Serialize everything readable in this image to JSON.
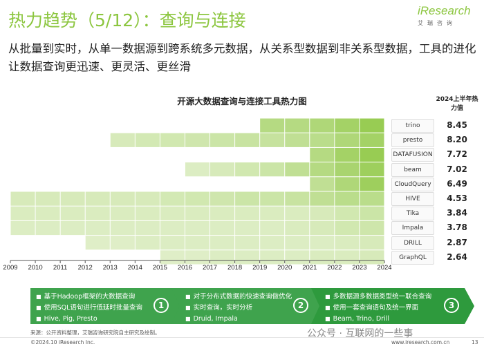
{
  "header": {
    "title": "热力趋势（5/12）：查询与连接",
    "subtitle": "从批量到实时，从单一数据源到跨系统多元数据，从关系型数据到非关系型数据，工具的进化让数据查询更迅速、更灵活、更丝滑",
    "logo_brand": "iResearch",
    "logo_sub": "艾瑞咨询"
  },
  "chart_data": {
    "type": "heatmap",
    "title": "开源大数据查询与连接工具热力图",
    "heat_header": "2024上半年热力值",
    "x": [
      "2009",
      "2010",
      "2011",
      "2012",
      "2013",
      "2014",
      "2015",
      "2016",
      "2017",
      "2018",
      "2019",
      "2020",
      "2021",
      "2022",
      "2023",
      "2024"
    ],
    "rows": [
      {
        "tool": "trino",
        "value": "8.45",
        "start": 2019,
        "intensity": [
          0,
          0,
          0,
          0,
          0,
          0,
          0,
          0,
          0,
          0,
          0.55,
          0.55,
          0.6,
          0.7,
          0.8,
          0.9
        ]
      },
      {
        "tool": "presto",
        "value": "8.20",
        "start": 2013,
        "intensity": [
          0,
          0,
          0,
          0,
          0.25,
          0.28,
          0.3,
          0.32,
          0.35,
          0.38,
          0.4,
          0.45,
          0.5,
          0.6,
          0.7,
          0.85
        ]
      },
      {
        "tool": "DATAFUSION",
        "value": "7.72",
        "start": 2021,
        "intensity": [
          0,
          0,
          0,
          0,
          0,
          0,
          0,
          0,
          0,
          0,
          0,
          0,
          0.55,
          0.7,
          0.8,
          0.85
        ]
      },
      {
        "tool": "beam",
        "value": "7.02",
        "start": 2016,
        "intensity": [
          0,
          0,
          0,
          0,
          0,
          0,
          0,
          0.2,
          0.25,
          0.3,
          0.35,
          0.45,
          0.55,
          0.65,
          0.75,
          0.8
        ]
      },
      {
        "tool": "CloudQuery",
        "value": "6.49",
        "start": 2021,
        "intensity": [
          0,
          0,
          0,
          0,
          0,
          0,
          0,
          0,
          0,
          0,
          0,
          0,
          0.45,
          0.6,
          0.75,
          0.8
        ]
      },
      {
        "tool": "HIVE",
        "value": "4.53",
        "start": 2009,
        "intensity": [
          0.25,
          0.25,
          0.25,
          0.25,
          0.25,
          0.25,
          0.28,
          0.3,
          0.32,
          0.35,
          0.35,
          0.38,
          0.45,
          0.5,
          0.5,
          0.55
        ]
      },
      {
        "tool": "Tika",
        "value": "3.84",
        "start": 2009,
        "intensity": [
          0.22,
          0.22,
          0.22,
          0.22,
          0.22,
          0.22,
          0.22,
          0.22,
          0.22,
          0.22,
          0.22,
          0.22,
          0.25,
          0.3,
          0.35,
          0.4
        ]
      },
      {
        "tool": "Impala",
        "value": "3.78",
        "start": 2009,
        "intensity": [
          0.2,
          0.2,
          0.2,
          0.2,
          0.2,
          0.2,
          0.2,
          0.2,
          0.2,
          0.2,
          0.2,
          0.22,
          0.25,
          0.3,
          0.33,
          0.35
        ]
      },
      {
        "tool": "DRILL",
        "value": "2.87",
        "start": 2012,
        "intensity": [
          0,
          0,
          0,
          0.18,
          0.18,
          0.2,
          0.2,
          0.2,
          0.2,
          0.2,
          0.2,
          0.2,
          0.2,
          0.22,
          0.25,
          0.25
        ]
      },
      {
        "tool": "GraphQL",
        "value": "2.64",
        "start": 2015,
        "intensity": [
          0,
          0,
          0,
          0,
          0,
          0,
          0.18,
          0.18,
          0.2,
          0.2,
          0.2,
          0.2,
          0.22,
          0.22,
          0.25,
          0.28
        ]
      }
    ],
    "colors": {
      "low": "#f3f8e8",
      "high": "#8cc63f",
      "empty": "#ffffff"
    }
  },
  "tool_logos": [
    "trino",
    "presto",
    "DATAFUSION",
    "beam",
    "CloudQuery",
    "HIVE",
    "Tika",
    "Impala",
    "DRILL",
    "GraphQL"
  ],
  "stages": [
    {
      "items": [
        "基于Hadoop框架的大数据查询",
        "使用SQL语句进行低延时批量查询",
        "Hive, Pig, Presto"
      ],
      "num": "①"
    },
    {
      "items": [
        "对于分布式数据的快速查询做优化",
        "实时查询，实时分析",
        "Druid, Impala"
      ],
      "num": "②"
    },
    {
      "items": [
        "多数据源多数据类型统一联合查询",
        "使用一套查询语句及统一界面",
        "Beam, Trino, Drill"
      ],
      "num": "③"
    }
  ],
  "source": "来源：公开资料整理，艾瑞咨询研究院自主研究及绘制。",
  "footer": {
    "copyright": "©2024.10 iResearch Inc.",
    "site": "www.iresearch.com.cn",
    "page": "13",
    "watermark": "公众号 · 互联网的一些事"
  }
}
